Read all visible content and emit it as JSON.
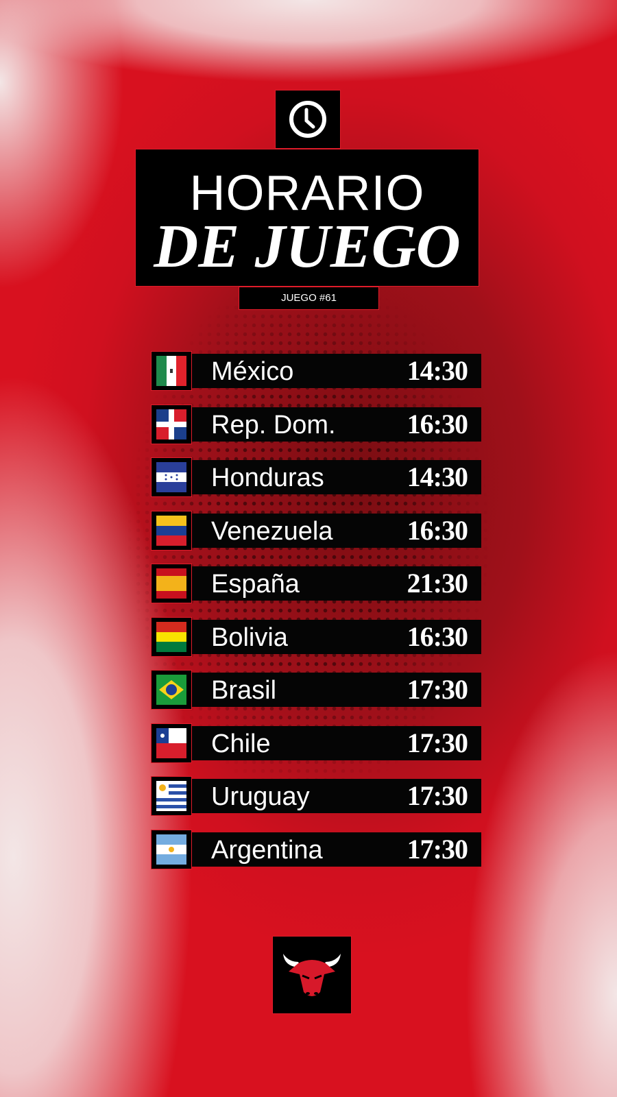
{
  "header": {
    "icon": "clock-icon",
    "title_line1": "HORARIO",
    "title_line2": "DE JUEGO",
    "game_label": "JUEGO #61"
  },
  "schedule": [
    {
      "country": "México",
      "time": "14:30",
      "flag": "mexico"
    },
    {
      "country": "Rep. Dom.",
      "time": "16:30",
      "flag": "dominican-republic"
    },
    {
      "country": "Honduras",
      "time": "14:30",
      "flag": "honduras"
    },
    {
      "country": "Venezuela",
      "time": "16:30",
      "flag": "venezuela"
    },
    {
      "country": "España",
      "time": "21:30",
      "flag": "spain"
    },
    {
      "country": "Bolivia",
      "time": "16:30",
      "flag": "bolivia"
    },
    {
      "country": "Brasil",
      "time": "17:30",
      "flag": "brazil"
    },
    {
      "country": "Chile",
      "time": "17:30",
      "flag": "chile"
    },
    {
      "country": "Uruguay",
      "time": "17:30",
      "flag": "uruguay"
    },
    {
      "country": "Argentina",
      "time": "17:30",
      "flag": "argentina"
    }
  ],
  "footer": {
    "logo": "chicago-bulls-logo"
  },
  "colors": {
    "accent": "#e11c2a",
    "panel": "#000000"
  }
}
